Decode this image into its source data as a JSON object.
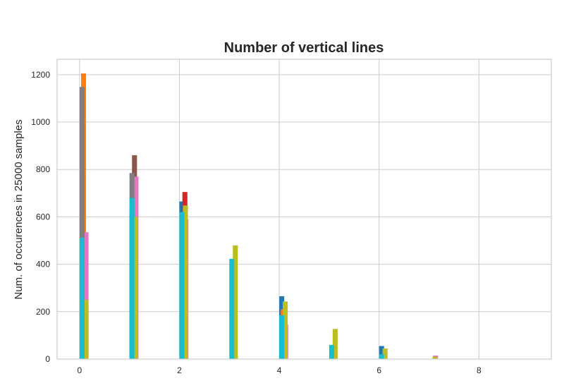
{
  "chart_data": {
    "type": "bar",
    "title": "Number of vertical lines",
    "xlabel": "",
    "ylabel": "Num. of occurences in 25000 samples",
    "xlim": [
      -0.45,
      9.45
    ],
    "ylim": [
      0,
      1265
    ],
    "xticks": [
      0,
      2,
      4,
      6,
      8
    ],
    "yticks": [
      0,
      200,
      400,
      600,
      800,
      1000,
      1200
    ],
    "grid": true,
    "legend": "none",
    "bar_width": 0.1,
    "series": [
      {
        "color": "#1f77b4",
        "offset": 0.0,
        "x": [
          1,
          2,
          3,
          4,
          5,
          6
        ],
        "values": [
          630,
          665,
          0,
          265,
          0,
          55
        ]
      },
      {
        "color": "#ff7f0e",
        "offset": 0.03,
        "x": [
          0,
          4
        ],
        "values": [
          1205,
          210
        ]
      },
      {
        "color": "#d62728",
        "offset": 0.06,
        "x": [
          1,
          2,
          6
        ],
        "values": [
          590,
          705,
          5
        ]
      },
      {
        "color": "#8c564b",
        "offset": 0.05,
        "x": [
          1
        ],
        "values": [
          860
        ]
      },
      {
        "color": "#e377c2",
        "offset": 0.08,
        "x": [
          0,
          1,
          2,
          4,
          7
        ],
        "values": [
          535,
          770,
          590,
          145,
          15
        ]
      },
      {
        "color": "#7f7f7f",
        "offset": 0.0,
        "x": [
          0,
          1
        ],
        "values": [
          1148,
          785
        ]
      },
      {
        "color": "#bcbd22",
        "offset": 0.07,
        "x": [
          0,
          1,
          2,
          3,
          4,
          5,
          6,
          7
        ],
        "values": [
          250,
          600,
          648,
          480,
          243,
          127,
          45,
          10
        ]
      },
      {
        "color": "#17becf",
        "offset": 0.0,
        "x": [
          0,
          1,
          2,
          3,
          4,
          5,
          6
        ],
        "values": [
          512,
          680,
          620,
          423,
          185,
          60,
          20
        ]
      }
    ]
  }
}
